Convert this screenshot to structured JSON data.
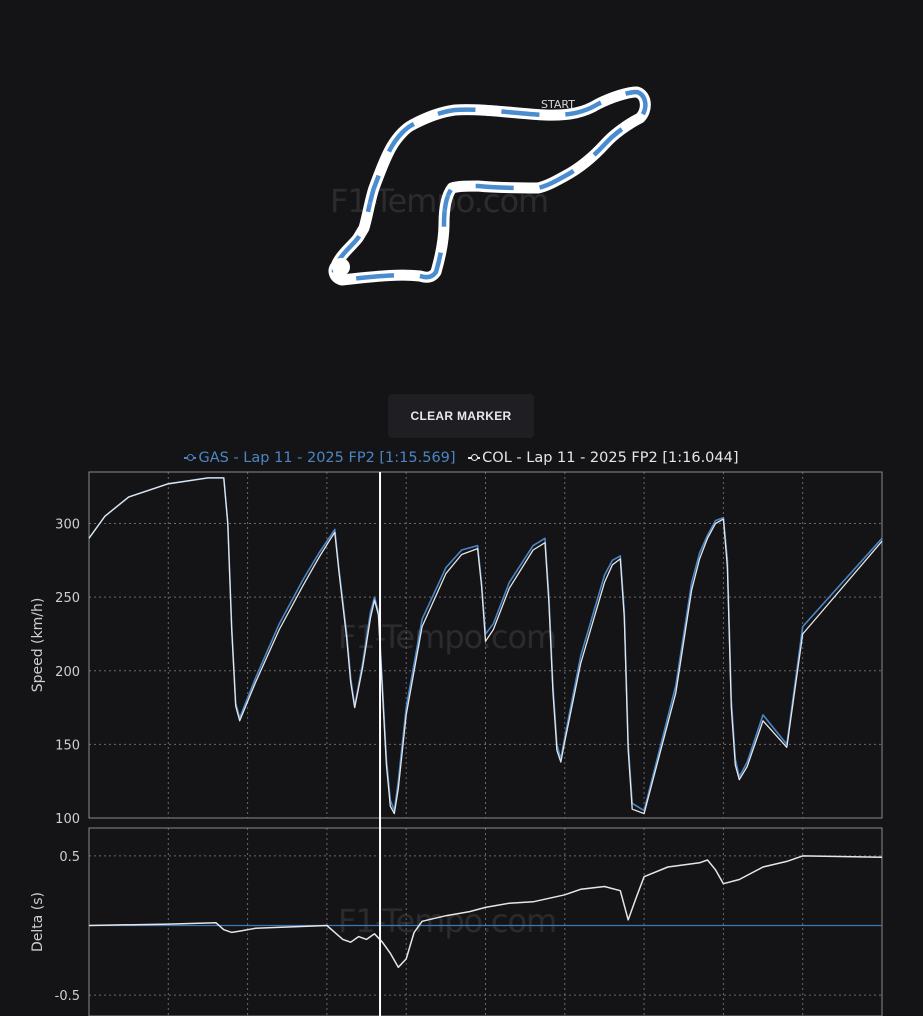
{
  "track": {
    "start_label": "START",
    "colors": {
      "outline": "#ffffff",
      "segment": "#4a8cd0"
    }
  },
  "watermark": "F1-Tempo.com",
  "clear_marker_label": "CLEAR MARKER",
  "legend": [
    {
      "label": "GAS - Lap 11 - 2025 FP2 [1:15.569]",
      "color": "#4a86c5"
    },
    {
      "label": "COL - Lap 11 - 2025 FP2 [1:16.044]",
      "color": "#e6e6e6"
    }
  ],
  "colors": {
    "gas": "#4a86c5",
    "col": "#e6e6e6",
    "grid": "#6a6a6a",
    "marker": "#ffffff",
    "baseline": "#3b76b8"
  },
  "marker_fraction": 0.367,
  "chart_data": [
    {
      "type": "line",
      "ylabel": "Speed (km/h)",
      "ylim": [
        100,
        335
      ],
      "xlim": [
        0,
        1
      ],
      "yticks": [
        100,
        150,
        200,
        250,
        300
      ],
      "grid": true,
      "series": [
        {
          "name": "GAS - Lap 11 - 2025 FP2 [1:15.569]",
          "x": [
            0,
            0.02,
            0.05,
            0.1,
            0.15,
            0.16,
            0.17,
            0.175,
            0.18,
            0.185,
            0.19,
            0.21,
            0.24,
            0.27,
            0.29,
            0.305,
            0.31,
            0.315,
            0.325,
            0.33,
            0.335,
            0.345,
            0.355,
            0.36,
            0.365,
            0.37,
            0.375,
            0.38,
            0.385,
            0.39,
            0.4,
            0.42,
            0.45,
            0.47,
            0.49,
            0.495,
            0.5,
            0.51,
            0.53,
            0.56,
            0.575,
            0.58,
            0.585,
            0.59,
            0.595,
            0.6,
            0.62,
            0.65,
            0.66,
            0.67,
            0.675,
            0.68,
            0.685,
            0.7,
            0.74,
            0.76,
            0.77,
            0.78,
            0.79,
            0.8,
            0.805,
            0.81,
            0.815,
            0.82,
            0.83,
            0.85,
            0.88,
            0.9,
            1.0
          ],
          "y": [
            290,
            305,
            318,
            327,
            331,
            331,
            331,
            300,
            230,
            178,
            168,
            195,
            232,
            262,
            280,
            292,
            296,
            270,
            225,
            195,
            176,
            205,
            240,
            250,
            240,
            190,
            140,
            112,
            105,
            125,
            175,
            235,
            270,
            282,
            285,
            260,
            225,
            232,
            260,
            285,
            290,
            250,
            190,
            150,
            140,
            155,
            210,
            265,
            275,
            278,
            240,
            150,
            110,
            105,
            190,
            260,
            280,
            292,
            302,
            304,
            275,
            180,
            140,
            128,
            138,
            170,
            150,
            230,
            290
          ]
        },
        {
          "name": "COL - Lap 11 - 2025 FP2 [1:16.044]",
          "x": [
            0,
            0.02,
            0.05,
            0.1,
            0.15,
            0.16,
            0.17,
            0.175,
            0.18,
            0.185,
            0.19,
            0.21,
            0.24,
            0.27,
            0.29,
            0.305,
            0.31,
            0.315,
            0.325,
            0.33,
            0.335,
            0.345,
            0.355,
            0.36,
            0.365,
            0.37,
            0.375,
            0.38,
            0.385,
            0.39,
            0.4,
            0.42,
            0.45,
            0.47,
            0.49,
            0.495,
            0.5,
            0.51,
            0.53,
            0.56,
            0.575,
            0.58,
            0.585,
            0.59,
            0.595,
            0.6,
            0.62,
            0.65,
            0.66,
            0.67,
            0.675,
            0.68,
            0.685,
            0.7,
            0.74,
            0.76,
            0.77,
            0.78,
            0.79,
            0.8,
            0.805,
            0.81,
            0.815,
            0.82,
            0.83,
            0.85,
            0.88,
            0.9,
            1.0
          ],
          "y": [
            290,
            305,
            318,
            327,
            331,
            331,
            331,
            300,
            228,
            176,
            166,
            192,
            228,
            258,
            277,
            290,
            294,
            268,
            222,
            192,
            175,
            202,
            236,
            248,
            238,
            186,
            136,
            108,
            103,
            120,
            170,
            230,
            266,
            279,
            283,
            258,
            220,
            228,
            256,
            282,
            287,
            246,
            186,
            146,
            138,
            152,
            205,
            260,
            272,
            276,
            236,
            146,
            106,
            103,
            185,
            255,
            276,
            290,
            300,
            303,
            270,
            175,
            136,
            126,
            135,
            166,
            148,
            225,
            288
          ]
        }
      ]
    },
    {
      "type": "line",
      "ylabel": "Delta (s)",
      "ylim": [
        -0.65,
        0.7
      ],
      "xlim": [
        0,
        1
      ],
      "yticks": [
        -0.5,
        0.5
      ],
      "ytick_labels": [
        "-0.5",
        "0.5"
      ],
      "grid": true,
      "series": [
        {
          "name": "",
          "x": [
            0,
            1
          ],
          "y": [
            0,
            0
          ]
        },
        {
          "name": "",
          "x": [
            0,
            0.1,
            0.16,
            0.17,
            0.18,
            0.19,
            0.21,
            0.3,
            0.31,
            0.32,
            0.33,
            0.34,
            0.35,
            0.36,
            0.37,
            0.38,
            0.39,
            0.4,
            0.41,
            0.42,
            0.45,
            0.48,
            0.5,
            0.53,
            0.56,
            0.6,
            0.62,
            0.65,
            0.67,
            0.68,
            0.69,
            0.7,
            0.73,
            0.77,
            0.78,
            0.79,
            0.8,
            0.82,
            0.85,
            0.88,
            0.9,
            1.0
          ],
          "y": [
            0,
            0.01,
            0.02,
            -0.03,
            -0.05,
            -0.04,
            -0.02,
            0.0,
            -0.05,
            -0.1,
            -0.12,
            -0.08,
            -0.1,
            -0.06,
            -0.12,
            -0.2,
            -0.3,
            -0.24,
            -0.05,
            0.03,
            0.07,
            0.1,
            0.13,
            0.16,
            0.17,
            0.22,
            0.26,
            0.28,
            0.25,
            0.04,
            0.2,
            0.35,
            0.42,
            0.45,
            0.47,
            0.4,
            0.3,
            0.33,
            0.42,
            0.46,
            0.5,
            0.49
          ]
        }
      ]
    }
  ]
}
